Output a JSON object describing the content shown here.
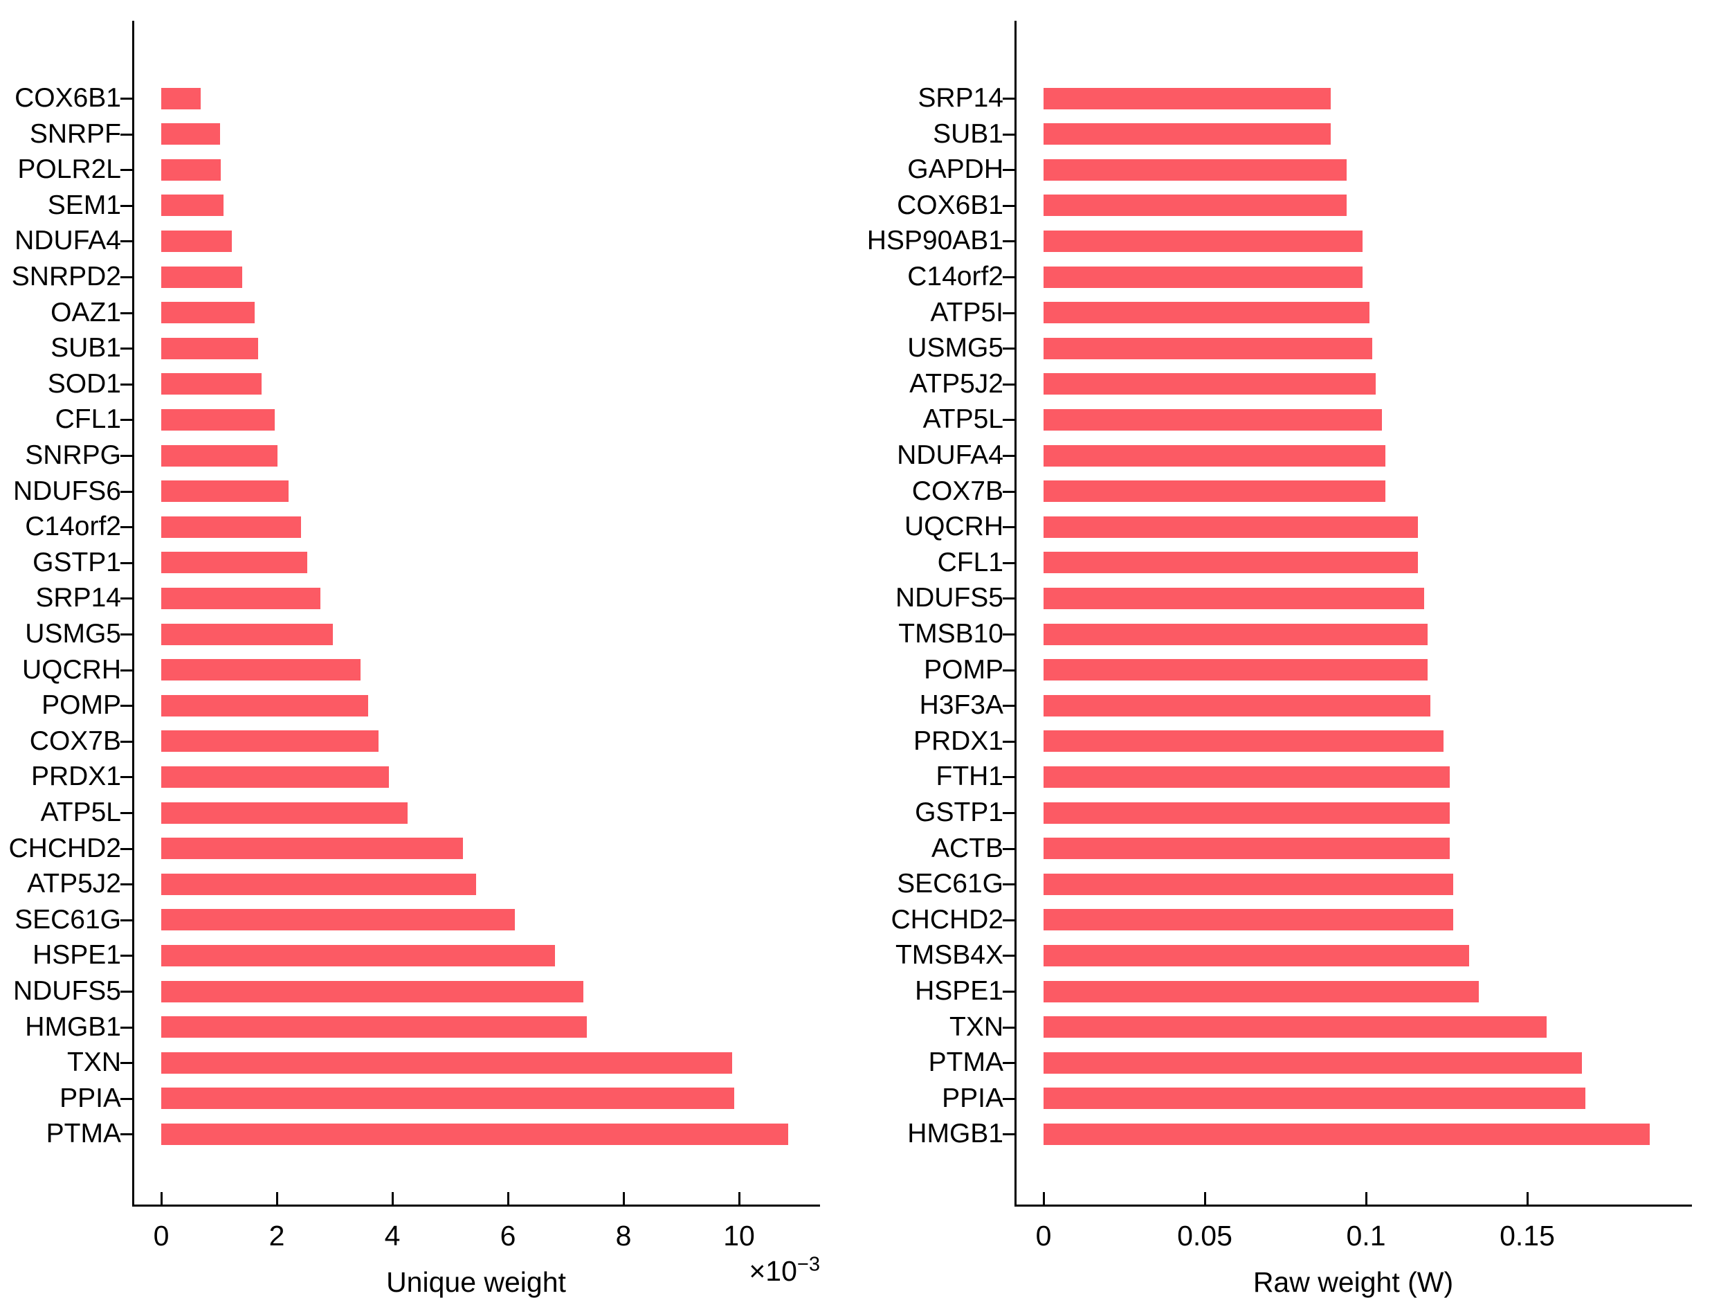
{
  "figure": {
    "background": "#ffffff",
    "bar_color": "#fc5a64",
    "axis_color": "#000000"
  },
  "chart_data": [
    {
      "type": "bar",
      "orientation": "horizontal",
      "title": "",
      "xlabel": "Unique weight",
      "offset_text": {
        "base": "×10",
        "exp": "−3"
      },
      "value_units": "1e-3",
      "xticks": [
        0,
        2,
        4,
        6,
        8,
        10
      ],
      "xtick_labels": [
        "0",
        "2",
        "4",
        "6",
        "8",
        "10"
      ],
      "xlim": [
        0,
        11.4
      ],
      "grid": false,
      "legend": null,
      "categories": [
        "COX6B1",
        "SNRPF",
        "POLR2L",
        "SEM1",
        "NDUFA4",
        "SNRPD2",
        "OAZ1",
        "SUB1",
        "SOD1",
        "CFL1",
        "SNRPG",
        "NDUFS6",
        "C14orf2",
        "GSTP1",
        "SRP14",
        "USMG5",
        "UQCRH",
        "POMP",
        "COX7B",
        "PRDX1",
        "ATP5L",
        "CHCHD2",
        "ATP5J2",
        "SEC61G",
        "HSPE1",
        "NDUFS5",
        "HMGB1",
        "TXN",
        "PPIA",
        "PTMA"
      ],
      "values": [
        0.68,
        1.02,
        1.03,
        1.08,
        1.22,
        1.4,
        1.62,
        1.68,
        1.74,
        1.97,
        2.01,
        2.2,
        2.42,
        2.53,
        2.76,
        2.97,
        3.45,
        3.58,
        3.76,
        3.94,
        4.26,
        5.22,
        5.45,
        6.12,
        6.82,
        7.3,
        7.36,
        9.88,
        9.92,
        10.85
      ]
    },
    {
      "type": "bar",
      "orientation": "horizontal",
      "title": "",
      "xlabel": "Raw weight (W)",
      "offset_text": null,
      "value_units": "1",
      "xticks": [
        0,
        0.05,
        0.1,
        0.15
      ],
      "xtick_labels": [
        "0",
        "0.05",
        "0.1",
        "0.15"
      ],
      "xlim": [
        0,
        0.2
      ],
      "grid": false,
      "legend": null,
      "categories": [
        "SRP14",
        "SUB1",
        "GAPDH",
        "COX6B1",
        "HSP90AB1",
        "C14orf2",
        "ATP5I",
        "USMG5",
        "ATP5J2",
        "ATP5L",
        "NDUFA4",
        "COX7B",
        "UQCRH",
        "CFL1",
        "NDUFS5",
        "TMSB10",
        "POMP",
        "H3F3A",
        "PRDX1",
        "FTH1",
        "GSTP1",
        "ACTB",
        "SEC61G",
        "CHCHD2",
        "TMSB4X",
        "HSPE1",
        "TXN",
        "PTMA",
        "PPIA",
        "HMGB1"
      ],
      "values": [
        0.089,
        0.089,
        0.094,
        0.094,
        0.099,
        0.099,
        0.101,
        0.102,
        0.103,
        0.105,
        0.106,
        0.106,
        0.116,
        0.116,
        0.118,
        0.119,
        0.119,
        0.12,
        0.124,
        0.126,
        0.126,
        0.126,
        0.127,
        0.127,
        0.132,
        0.135,
        0.156,
        0.167,
        0.168,
        0.188
      ]
    }
  ]
}
